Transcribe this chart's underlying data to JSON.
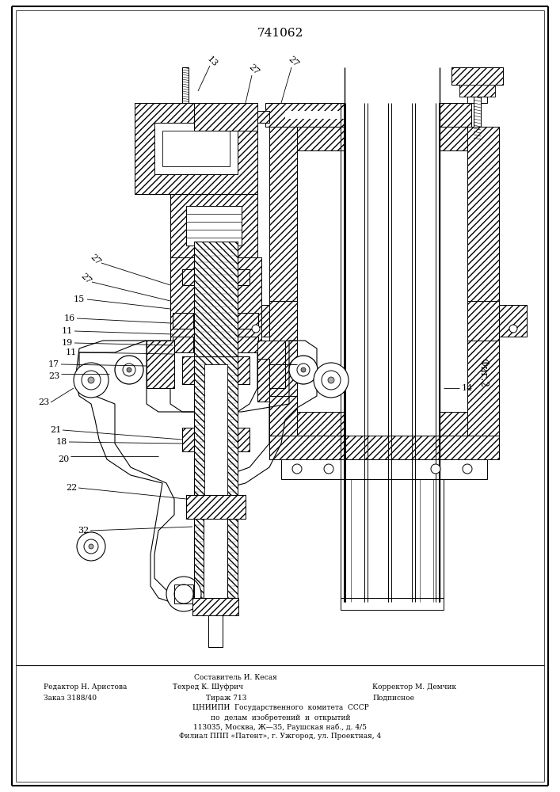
{
  "patent_number": "741062",
  "fig_label": "Фиг.2",
  "footer_line1": "Составитель И. Кесая",
  "footer_line2_left": "Редактор Н. Аристова",
  "footer_line2_mid": "Техред К. Шуфрич",
  "footer_line2_right": "Корректор М. Демчик",
  "footer_line3_left": "Заказ 3188/40",
  "footer_line3_mid": "Тираж 713",
  "footer_line3_right": "Подписное",
  "footer_line4": "ЦНИИПИ  Государственного  комитета  СССР",
  "footer_line5": "по  делам  изобретений  и  открытий",
  "footer_line6": "113035, Москва, Ж—35, Раушская наб., д. 4/5",
  "footer_line7": "Филиал ППП «Патент», г. Ужгород, ул. Проектная, 4",
  "bg_color": "#ffffff",
  "line_color": "#000000"
}
